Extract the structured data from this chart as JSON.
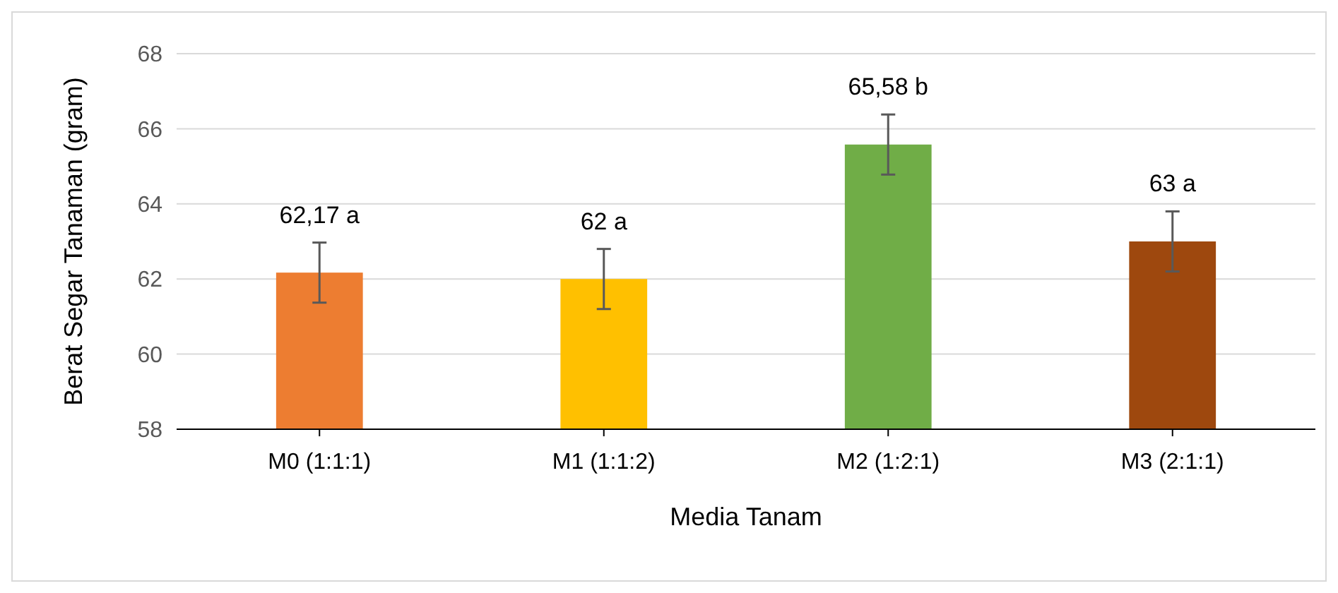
{
  "chart_data": {
    "type": "bar",
    "xlabel": "Media Tanam",
    "ylabel": "Berat Segar Tanaman (gram)",
    "categories": [
      "M0 (1:1:1)",
      "M1 (1:1:2)",
      "M2 (1:2:1)",
      "M3 (2:1:1)"
    ],
    "values": [
      62.17,
      62,
      65.58,
      63
    ],
    "colors": [
      "#ed7d31",
      "#ffc000",
      "#70ad47",
      "#9e480e"
    ],
    "errors": [
      0.8,
      0.8,
      0.8,
      0.8
    ],
    "value_labels": [
      "62,17 a",
      "62 a",
      "65,58 b",
      "63 a"
    ],
    "ylim": [
      58,
      68
    ],
    "yticks": [
      58,
      60,
      62,
      64,
      66,
      68
    ],
    "grid": "y"
  }
}
